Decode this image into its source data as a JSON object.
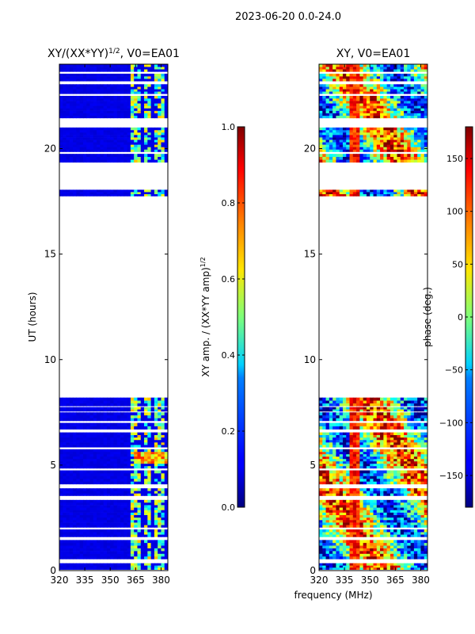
{
  "suptitle": "2023-06-20 0.0-24.0",
  "chart_data": [
    {
      "type": "heatmap",
      "title": "XY/(XX*YY)$^{1/2}$, V0=EA01",
      "title_main": "XY/(XX*YY)",
      "title_sup": "1/2",
      "title_tail": ", V0=EA01",
      "xlabel": "frequency (MHz)",
      "ylabel": "UT (hours)",
      "xlim": [
        320,
        384
      ],
      "ylim": [
        0,
        24
      ],
      "xticks": [
        320,
        335,
        350,
        365,
        380
      ],
      "yticks": [
        0,
        5,
        10,
        15,
        20
      ],
      "colorbar": {
        "label": "XY amp. / (XX*YY amp)$^{1/2}$",
        "label_main": "XY amp. / (XX*YY amp)",
        "label_sup": "1/2",
        "range": [
          0.0,
          1.0
        ],
        "ticks": [
          0.0,
          0.2,
          0.4,
          0.6,
          0.8,
          1.0
        ],
        "tick_labels": [
          "0.0",
          "0.2",
          "0.4",
          "0.6",
          "0.8",
          "1.0"
        ],
        "colormap": "jet"
      },
      "data_blocks_ut": [
        [
          0.05,
          0.35
        ],
        [
          0.55,
          1.45
        ],
        [
          1.6,
          1.95
        ],
        [
          2.05,
          3.35
        ],
        [
          3.55,
          3.9
        ],
        [
          4.1,
          4.75
        ],
        [
          4.85,
          5.75
        ],
        [
          5.85,
          6.55
        ],
        [
          6.7,
          7.0
        ],
        [
          7.1,
          7.5
        ],
        [
          7.55,
          7.75
        ],
        [
          7.8,
          8.2
        ],
        [
          17.75,
          18.05
        ],
        [
          19.35,
          19.75
        ],
        [
          19.85,
          21.0
        ],
        [
          21.45,
          22.5
        ],
        [
          22.6,
          23.05
        ],
        [
          23.2,
          23.55
        ],
        [
          23.65,
          24.0
        ]
      ],
      "mean_value": 0.1,
      "rfi_channels_mhz": [
        364,
        365.5,
        367,
        371,
        373,
        377,
        379.5,
        381
      ],
      "rfi_value": 0.55
    },
    {
      "type": "heatmap",
      "title": "XY, V0=EA01",
      "xlabel": "frequency (MHz)",
      "ylabel": "",
      "xlim": [
        320,
        384
      ],
      "ylim": [
        0,
        24
      ],
      "xticks": [
        320,
        335,
        350,
        365,
        380
      ],
      "yticks": [
        0,
        5,
        10,
        15,
        20
      ],
      "colorbar": {
        "label": "phase (deg.)",
        "range": [
          -180,
          180
        ],
        "ticks": [
          -150,
          -100,
          -50,
          0,
          50,
          100,
          150
        ],
        "tick_labels": [
          "−150",
          "−100",
          "−50",
          "0",
          "50",
          "100",
          "150"
        ],
        "colormap": "jet"
      },
      "data_blocks_ut": [
        [
          0.05,
          0.35
        ],
        [
          0.55,
          1.45
        ],
        [
          1.6,
          1.95
        ],
        [
          2.05,
          3.35
        ],
        [
          3.55,
          3.9
        ],
        [
          4.1,
          4.75
        ],
        [
          4.85,
          5.75
        ],
        [
          5.85,
          6.55
        ],
        [
          6.7,
          7.0
        ],
        [
          7.1,
          7.5
        ],
        [
          7.55,
          7.75
        ],
        [
          7.8,
          8.2
        ],
        [
          17.75,
          18.05
        ],
        [
          19.35,
          19.75
        ],
        [
          19.85,
          21.0
        ],
        [
          21.45,
          22.5
        ],
        [
          22.6,
          23.05
        ],
        [
          23.2,
          23.55
        ],
        [
          23.65,
          24.0
        ]
      ],
      "value_unit": "deg"
    }
  ],
  "shared_xlabel": "frequency (MHz)",
  "colors": {
    "text": "#000000",
    "axis": "#000000",
    "background": "#ffffff"
  }
}
